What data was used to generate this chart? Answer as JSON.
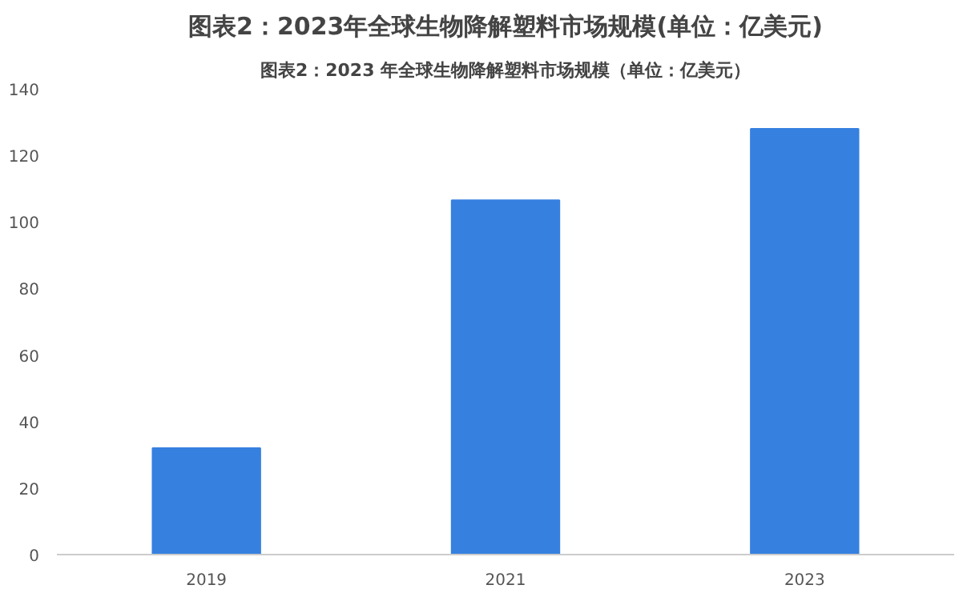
{
  "chart_data": {
    "type": "bar",
    "title": "图表2：2023年全球生物降解塑料市场规模(单位：亿美元)",
    "subtitle": "图表2：2023 年全球生物降解塑料市场规模（单位：亿美元）",
    "categories": [
      "2019",
      "2021",
      "2023"
    ],
    "values": [
      32,
      106.5,
      128
    ],
    "color": "#3680e0",
    "ylim": [
      0,
      140
    ],
    "yticks": [
      0,
      20,
      40,
      60,
      80,
      100,
      120,
      140
    ],
    "grid": false
  }
}
